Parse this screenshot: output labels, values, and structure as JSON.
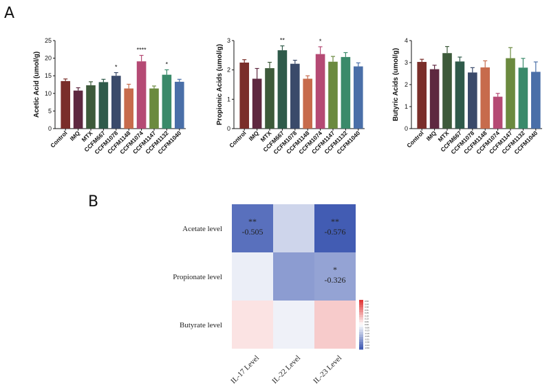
{
  "panel_labels": {
    "a": "A",
    "b": "B"
  },
  "colors": {
    "bars": [
      "#7a2e2a",
      "#5e2840",
      "#3d5a3a",
      "#2f5a4a",
      "#3a4a6a",
      "#c76b4c",
      "#b54a74",
      "#6b8a3f",
      "#3a8a6a",
      "#4a6fa8"
    ],
    "heatmap_low": "#3a55b0",
    "heatmap_mid": "#ffffff",
    "heatmap_high": "#e03030"
  },
  "chart_data": [
    {
      "type": "bar",
      "title": "",
      "ylabel": "Acetic Acid (umol/g)",
      "categories": [
        "Control",
        "IMQ",
        "MTX",
        "CCFM667",
        "CCFM1078",
        "CCFM1148",
        "CCFM1074",
        "CCFM1147",
        "CCFM1132",
        "CCFM1040"
      ],
      "values": [
        13.5,
        10.8,
        12.3,
        13.2,
        15.0,
        11.4,
        19.1,
        11.4,
        15.3,
        13.3
      ],
      "errors": [
        0.6,
        0.8,
        1.0,
        0.8,
        0.9,
        1.2,
        1.7,
        0.7,
        1.4,
        0.7
      ],
      "significance": [
        "",
        "",
        "",
        "",
        "*",
        "",
        "****",
        "",
        "*",
        ""
      ],
      "ylim": [
        0,
        25
      ],
      "yticks": [
        0,
        5,
        10,
        15,
        20,
        25
      ]
    },
    {
      "type": "bar",
      "title": "",
      "ylabel": "Propionic Acids (umol/g)",
      "categories": [
        "Control",
        "IMQ",
        "MTX",
        "CCFM667",
        "CCFM1078",
        "CCFM1148",
        "CCFM1074",
        "CCFM1147",
        "CCFM1132",
        "CCFM1040"
      ],
      "values": [
        2.25,
        1.7,
        2.06,
        2.67,
        2.21,
        1.7,
        2.54,
        2.28,
        2.44,
        2.12
      ],
      "errors": [
        0.1,
        0.35,
        0.2,
        0.15,
        0.12,
        0.1,
        0.25,
        0.18,
        0.15,
        0.12
      ],
      "significance": [
        "",
        "",
        "",
        "**",
        "",
        "",
        "*",
        "",
        "",
        ""
      ],
      "ylim": [
        0,
        3
      ],
      "yticks": [
        0,
        1,
        2,
        3
      ]
    },
    {
      "type": "bar",
      "title": "",
      "ylabel": "Butyric Acids (umol/g)",
      "categories": [
        "Control",
        "IMQ",
        "MTX",
        "CCFM667",
        "CCFM1078",
        "CCFM1148",
        "CCFM1074",
        "CCFM1147",
        "CCFM1132",
        "CCFM1040"
      ],
      "values": [
        3.03,
        2.7,
        3.43,
        3.05,
        2.55,
        2.78,
        1.45,
        3.2,
        2.77,
        2.58
      ],
      "errors": [
        0.12,
        0.18,
        0.3,
        0.2,
        0.22,
        0.3,
        0.15,
        0.48,
        0.42,
        0.45
      ],
      "significance": [
        "",
        "",
        "",
        "",
        "",
        "",
        "",
        "",
        "",
        ""
      ],
      "ylim": [
        0,
        4
      ],
      "yticks": [
        0,
        1,
        2,
        3,
        4
      ]
    },
    {
      "type": "heatmap",
      "rows": [
        "Acetate level",
        "Propionate level",
        "Butyrate level"
      ],
      "columns": [
        "IL-17 Level",
        "IL-22 Level",
        "IL-23 Level"
      ],
      "values": [
        [
          -0.505,
          -0.15,
          -0.576
        ],
        [
          -0.06,
          -0.35,
          -0.326
        ],
        [
          0.08,
          -0.05,
          0.15
        ]
      ],
      "labels": [
        [
          {
            "sig": "**",
            "val": "-0.505"
          },
          {
            "sig": "",
            "val": ""
          },
          {
            "sig": "**",
            "val": "-0.576"
          }
        ],
        [
          {
            "sig": "",
            "val": ""
          },
          {
            "sig": "",
            "val": ""
          },
          {
            "sig": "*",
            "val": "-0.326"
          }
        ],
        [
          {
            "sig": "",
            "val": ""
          },
          {
            "sig": "",
            "val": ""
          },
          {
            "sig": "",
            "val": ""
          }
        ]
      ],
      "colorbar_ticks": [
        "0.50",
        "0.44",
        "0.38",
        "0.31",
        "0.25",
        "0.19",
        "0.13",
        "0.06",
        "0.00",
        "-0.06",
        "-0.13",
        "-0.19",
        "-0.25",
        "-0.31",
        "-0.38",
        "-0.44",
        "-0.50"
      ],
      "vmin": -0.6,
      "vmax": 0.6
    }
  ]
}
